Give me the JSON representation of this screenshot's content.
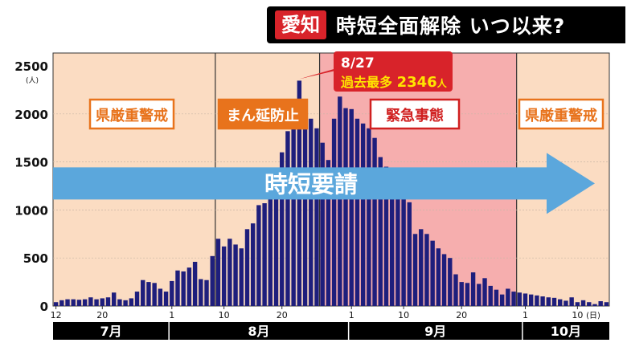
{
  "headline": {
    "tag": "愛知",
    "text": "時短全面解除 いつ以来?"
  },
  "chart_data": {
    "type": "bar",
    "y_ticks": [
      "2500",
      "2000",
      "1500",
      "1000",
      "500",
      "0"
    ],
    "y_unit": "(人)",
    "ylim": [
      0,
      2500
    ],
    "x_tick_labels": [
      "12",
      "20",
      "1",
      "10",
      "20",
      "1",
      "10",
      "20",
      "1",
      "10"
    ],
    "x_unit": "(日)",
    "months": [
      "7月",
      "8月",
      "9月",
      "10月"
    ],
    "x_start": "7/12",
    "x_end": "10/15",
    "values": [
      40,
      60,
      70,
      70,
      65,
      70,
      90,
      70,
      80,
      90,
      140,
      70,
      60,
      80,
      150,
      270,
      250,
      240,
      180,
      150,
      260,
      370,
      360,
      400,
      460,
      280,
      270,
      520,
      700,
      620,
      700,
      640,
      600,
      800,
      860,
      1050,
      1070,
      1210,
      1400,
      1600,
      1820,
      2000,
      2346,
      2000,
      1950,
      1850,
      1700,
      1520,
      1950,
      2180,
      2060,
      2050,
      1950,
      1900,
      1850,
      1750,
      1550,
      1450,
      1350,
      1250,
      1150,
      1080,
      750,
      800,
      750,
      680,
      600,
      540,
      500,
      330,
      250,
      240,
      350,
      230,
      290,
      210,
      170,
      120,
      180,
      150,
      140,
      130,
      120,
      110,
      100,
      90,
      85,
      70,
      55,
      90,
      40,
      60,
      40,
      20,
      50,
      40
    ],
    "bands": [
      {
        "label": "県厳重警戒"
      },
      {
        "label": "まん延防止"
      },
      {
        "label": "緊急事態"
      },
      {
        "label": "県厳重警戒"
      }
    ],
    "arrow_label": "時短要請",
    "annotation": {
      "date": "8/27",
      "text": "過去最多",
      "value": "2346",
      "unit": "人"
    },
    "colors": {
      "bar": "#1e1e7c",
      "band_normal": "#fbdcc2",
      "band_emergency": "#f6aeae",
      "arrow": "#5ba7dc",
      "label_orange": "#e8731c",
      "label_red": "#d02020"
    }
  }
}
